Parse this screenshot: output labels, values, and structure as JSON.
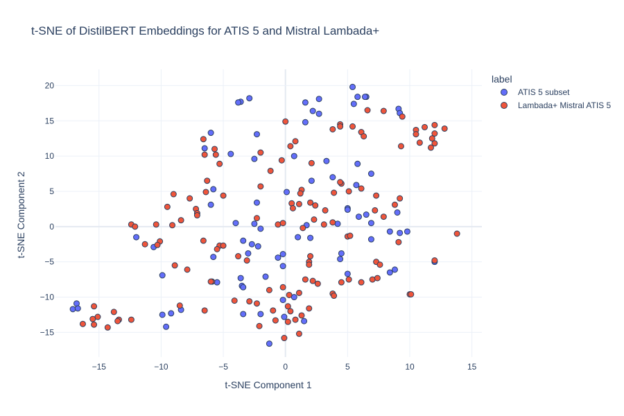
{
  "chart_data": {
    "type": "scatter",
    "title": "t-SNE of DistilBERT Embeddings for ATIS 5 and Mistral Lambada+",
    "xlabel": "t-SNE Component 1",
    "ylabel": "t-SNE Component 2",
    "xlim": [
      -18.5,
      15.8
    ],
    "ylim": [
      -18.5,
      22.3
    ],
    "xticks": [
      -15,
      -10,
      -5,
      0,
      5,
      10,
      15
    ],
    "xtick_labels": [
      "−15",
      "−10",
      "−5",
      "0",
      "5",
      "10",
      "15"
    ],
    "yticks": [
      -15,
      -10,
      -5,
      0,
      5,
      10,
      15,
      20
    ],
    "ytick_labels": [
      "−15",
      "−10",
      "−5",
      "0",
      "5",
      "10",
      "15",
      "20"
    ],
    "grid": true,
    "legend_title": "label",
    "legend_position": "top-right",
    "series": [
      {
        "name": "ATIS 5 subset",
        "color": "#636efa",
        "points": [
          [
            5.4,
            19.8
          ],
          [
            6.5,
            18.4
          ],
          [
            5.8,
            18.4
          ],
          [
            6.4,
            18.4
          ],
          [
            5.5,
            17.4
          ],
          [
            9.1,
            16.7
          ],
          [
            9.2,
            16.1
          ],
          [
            -2.9,
            18.2
          ],
          [
            -3.6,
            17.7
          ],
          [
            -3.8,
            17.6
          ],
          [
            1.6,
            17.6
          ],
          [
            2.7,
            18.1
          ],
          [
            2.2,
            16.4
          ],
          [
            2.7,
            16.0
          ],
          [
            1.6,
            14.8
          ],
          [
            -6.0,
            13.3
          ],
          [
            -2.3,
            13.1
          ],
          [
            -6.5,
            11.1
          ],
          [
            -4.4,
            10.3
          ],
          [
            -2.5,
            9.6
          ],
          [
            0.7,
            10.0
          ],
          [
            3.3,
            9.3
          ],
          [
            3.8,
            7.0
          ],
          [
            5.8,
            8.9
          ],
          [
            6.9,
            7.5
          ],
          [
            2.1,
            6.5
          ],
          [
            5.7,
            5.9
          ],
          [
            -5.8,
            5.3
          ],
          [
            0.1,
            4.9
          ],
          [
            -2.3,
            3.4
          ],
          [
            -6.0,
            3.1
          ],
          [
            5.0,
            2.6
          ],
          [
            5.0,
            2.4
          ],
          [
            6.5,
            1.7
          ],
          [
            5.9,
            1.4
          ],
          [
            9.0,
            2.0
          ],
          [
            6.9,
            0.5
          ],
          [
            4.2,
            0.4
          ],
          [
            1.7,
            0.2
          ],
          [
            -4.0,
            0.5
          ],
          [
            -2.5,
            0.4
          ],
          [
            -2.0,
            -0.3
          ],
          [
            -12.0,
            -1.5
          ],
          [
            -10.6,
            -2.9
          ],
          [
            -3.4,
            -2.0
          ],
          [
            -2.7,
            -2.5
          ],
          [
            -2.2,
            -2.8
          ],
          [
            -3.0,
            -3.8
          ],
          [
            1.0,
            -1.5
          ],
          [
            2.0,
            -1.6
          ],
          [
            6.9,
            -1.8
          ],
          [
            8.4,
            -0.7
          ],
          [
            9.2,
            -0.9
          ],
          [
            9.8,
            -0.7
          ],
          [
            -5.8,
            -4.3
          ],
          [
            -0.2,
            -3.9
          ],
          [
            -0.6,
            -4.4
          ],
          [
            4.5,
            -3.8
          ],
          [
            4.4,
            -4.6
          ],
          [
            -0.2,
            -5.6
          ],
          [
            -9.9,
            -6.9
          ],
          [
            -3.6,
            -7.3
          ],
          [
            -5.5,
            -7.9
          ],
          [
            -1.6,
            -7.1
          ],
          [
            -3.5,
            -8.4
          ],
          [
            -3.4,
            -8.6
          ],
          [
            5.0,
            -6.7
          ],
          [
            8.8,
            -6.1
          ],
          [
            8.4,
            -6.5
          ],
          [
            12.0,
            -5.0
          ],
          [
            0.7,
            -10.0
          ],
          [
            -0.2,
            -10.4
          ],
          [
            -16.8,
            -10.9
          ],
          [
            -17.1,
            -11.7
          ],
          [
            -16.7,
            -11.6
          ],
          [
            -8.4,
            -11.8
          ],
          [
            -9.2,
            -12.3
          ],
          [
            -3.4,
            -12.4
          ],
          [
            -2.0,
            -12.4
          ],
          [
            -9.9,
            -12.5
          ],
          [
            -0.1,
            -12.8
          ],
          [
            1.5,
            -13.4
          ],
          [
            -9.6,
            -14.2
          ],
          [
            -1.3,
            -16.6
          ]
        ]
      },
      {
        "name": "Lambada+ Mistral ATIS 5",
        "color": "#ef553b",
        "points": [
          [
            0.0,
            14.9
          ],
          [
            6.6,
            16.5
          ],
          [
            7.9,
            16.4
          ],
          [
            9.4,
            15.6
          ],
          [
            4.4,
            14.5
          ],
          [
            4.4,
            14.2
          ],
          [
            3.8,
            13.8
          ],
          [
            5.4,
            14.2
          ],
          [
            12.0,
            14.4
          ],
          [
            11.2,
            14.1
          ],
          [
            12.8,
            13.9
          ],
          [
            10.5,
            13.7
          ],
          [
            10.5,
            13.1
          ],
          [
            12.0,
            13.2
          ],
          [
            6.1,
            13.4
          ],
          [
            6.3,
            12.8
          ],
          [
            11.8,
            12.5
          ],
          [
            12.0,
            11.8
          ],
          [
            11.7,
            11.2
          ],
          [
            10.8,
            11.9
          ],
          [
            9.3,
            11.4
          ],
          [
            0.8,
            12.1
          ],
          [
            0.4,
            11.4
          ],
          [
            -6.6,
            12.4
          ],
          [
            -5.7,
            11.0
          ],
          [
            -2.0,
            10.5
          ],
          [
            -5.6,
            10.2
          ],
          [
            -6.5,
            10.2
          ],
          [
            -0.3,
            9.4
          ],
          [
            -5.3,
            8.9
          ],
          [
            2.1,
            9.0
          ],
          [
            -1.2,
            7.9
          ],
          [
            -6.3,
            6.5
          ],
          [
            -2.0,
            5.7
          ],
          [
            6.1,
            5.4
          ],
          [
            1.3,
            5.2
          ],
          [
            1.2,
            4.7
          ],
          [
            3.9,
            4.8
          ],
          [
            5.1,
            5.0
          ],
          [
            -9.0,
            4.6
          ],
          [
            -5.0,
            4.4
          ],
          [
            7.3,
            4.4
          ],
          [
            -7.7,
            4.0
          ],
          [
            9.2,
            4.0
          ],
          [
            0.5,
            3.3
          ],
          [
            2.0,
            3.4
          ],
          [
            1.1,
            3.2
          ],
          [
            -6.4,
            4.9
          ],
          [
            -9.5,
            2.8
          ],
          [
            -7.2,
            2.5
          ],
          [
            0.6,
            2.6
          ],
          [
            2.4,
            3.0
          ],
          [
            4.5,
            6.1
          ],
          [
            4.4,
            6.3
          ],
          [
            8.8,
            3.1
          ],
          [
            3.2,
            2.3
          ],
          [
            7.2,
            2.3
          ],
          [
            -7.1,
            1.9
          ],
          [
            -7.1,
            1.6
          ],
          [
            7.9,
            1.4
          ],
          [
            -2.3,
            1.2
          ],
          [
            2.3,
            1.0
          ],
          [
            -8.4,
            0.9
          ],
          [
            -12.4,
            0.3
          ],
          [
            -12.1,
            0.0
          ],
          [
            -10.4,
            0.3
          ],
          [
            -9.1,
            0.2
          ],
          [
            -0.6,
            0.3
          ],
          [
            -0.2,
            0.5
          ],
          [
            1.4,
            -0.2
          ],
          [
            3.1,
            0.3
          ],
          [
            3.8,
            0.6
          ],
          [
            5.0,
            -1.4
          ],
          [
            5.2,
            -1.3
          ],
          [
            9.1,
            -2.2
          ],
          [
            13.8,
            -1.0
          ],
          [
            -11.3,
            -2.5
          ],
          [
            -10.1,
            -2.1
          ],
          [
            -10.3,
            -2.6
          ],
          [
            -6.6,
            -2.0
          ],
          [
            -5.3,
            -2.7
          ],
          [
            -5.0,
            -2.7
          ],
          [
            -5.5,
            -3.2
          ],
          [
            -3.8,
            -4.2
          ],
          [
            -3.1,
            -4.8
          ],
          [
            2.0,
            -4.2
          ],
          [
            1.9,
            -5.0
          ],
          [
            1.9,
            -5.4
          ],
          [
            7.3,
            -5.0
          ],
          [
            7.6,
            -5.4
          ],
          [
            12.0,
            -4.8
          ],
          [
            -8.9,
            -5.5
          ],
          [
            -7.9,
            -6.1
          ],
          [
            -5.9,
            -7.8
          ],
          [
            -6.0,
            -7.8
          ],
          [
            1.6,
            -7.5
          ],
          [
            2.2,
            -7.7
          ],
          [
            2.6,
            -8.1
          ],
          [
            4.5,
            -7.9
          ],
          [
            5.1,
            -7.5
          ],
          [
            6.1,
            -7.9
          ],
          [
            7.0,
            -7.5
          ],
          [
            7.4,
            -7.3
          ],
          [
            -0.2,
            -8.6
          ],
          [
            -1.3,
            -9.0
          ],
          [
            1.1,
            -9.4
          ],
          [
            0.3,
            -9.7
          ],
          [
            3.8,
            -9.5
          ],
          [
            3.9,
            -9.8
          ],
          [
            10.0,
            -9.6
          ],
          [
            10.1,
            -9.6
          ],
          [
            -4.1,
            -10.5
          ],
          [
            -2.9,
            -10.6
          ],
          [
            -2.3,
            -10.9
          ],
          [
            0.2,
            -11.3
          ],
          [
            0.4,
            -12.0
          ],
          [
            1.9,
            -11.6
          ],
          [
            -1.0,
            -11.9
          ],
          [
            -15.4,
            -11.3
          ],
          [
            -13.8,
            -12.1
          ],
          [
            -8.5,
            -11.2
          ],
          [
            -6.5,
            -11.9
          ],
          [
            1.3,
            -12.6
          ],
          [
            -15.1,
            -12.8
          ],
          [
            -15.5,
            -13.1
          ],
          [
            -13.4,
            -13.2
          ],
          [
            -13.5,
            -13.4
          ],
          [
            -12.4,
            -13.2
          ],
          [
            -0.8,
            -13.3
          ],
          [
            0.8,
            -13.2
          ],
          [
            -16.3,
            -13.8
          ],
          [
            -15.4,
            -13.9
          ],
          [
            -14.3,
            -14.3
          ],
          [
            -2.1,
            -14.1
          ],
          [
            0.2,
            -13.5
          ],
          [
            1.1,
            -15.2
          ],
          [
            -0.1,
            -15.8
          ]
        ]
      }
    ]
  }
}
